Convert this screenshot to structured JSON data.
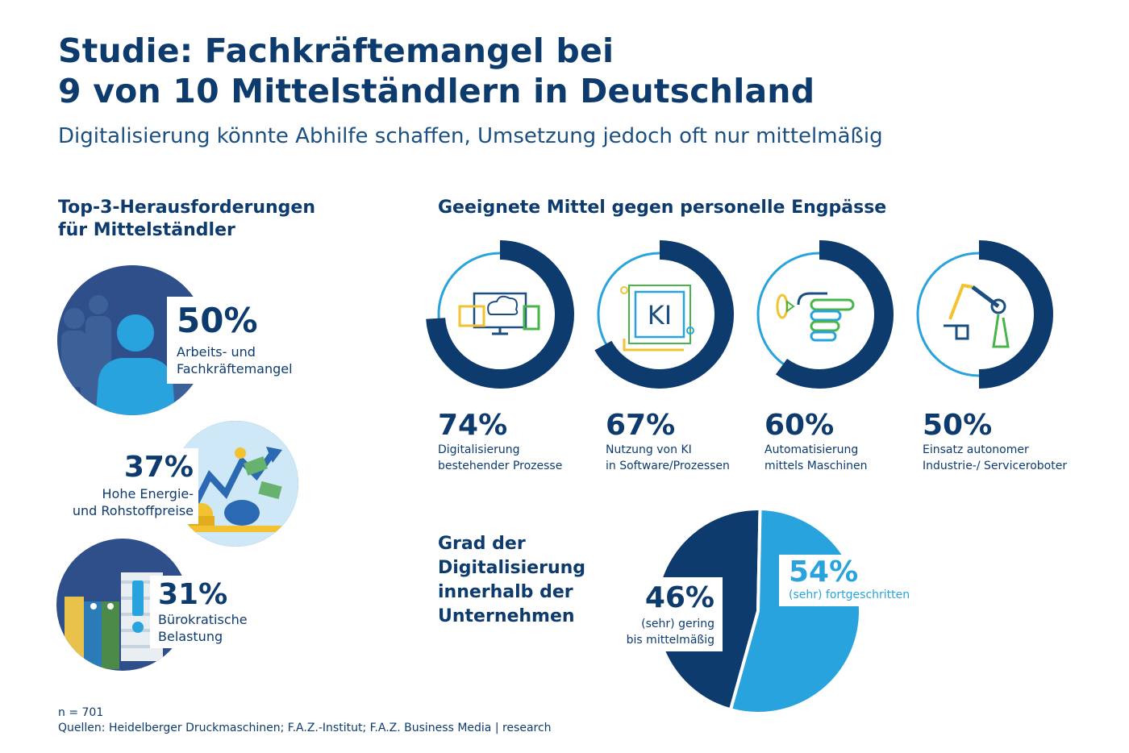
{
  "header": {
    "title_line1": "Studie: Fachkräftemangel bei",
    "title_line2": "9 von 10 Mittelständlern in Deutschland",
    "subtitle": "Digitalisierung könnte Abhilfe schaffen, Umsetzung jedoch oft nur mittelmäßig"
  },
  "challenges": {
    "heading_line1": "Top-3-Herausforderungen",
    "heading_line2": "für Mittelständler",
    "items": [
      {
        "pct": "50%",
        "label_line1": "Arbeits- und",
        "label_line2": "Fachkräftemangel"
      },
      {
        "pct": "37%",
        "label_line1": "Hohe Energie-",
        "label_line2": "und Rohstoffpreise"
      },
      {
        "pct": "31%",
        "label_line1": "Bürokratische",
        "label_line2": "Belastung"
      }
    ]
  },
  "measures": {
    "heading": "Geeignete Mittel gegen personelle Engpässe",
    "items": [
      {
        "pct": "74%",
        "label_line1": "Digitalisierung",
        "label_line2": "bestehender Prozesse",
        "icon": "cloud-devices-icon"
      },
      {
        "pct": "67%",
        "label_line1": "Nutzung von KI",
        "label_line2": "in Software/Prozessen",
        "icon": "ki-chip-icon",
        "icon_text": "KI"
      },
      {
        "pct": "60%",
        "label_line1": "Automatisierung",
        "label_line2": "mittels Maschinen",
        "icon": "robot-hand-icon"
      },
      {
        "pct": "50%",
        "label_line1": "Einsatz autonomer",
        "label_line2": "Industrie-/ Serviceroboter",
        "icon": "robot-arm-icon"
      }
    ]
  },
  "digitalization": {
    "heading_line1": "Grad der",
    "heading_line2": "Digitalisierung",
    "heading_line3": "innerhalb der",
    "heading_line4": "Unternehmen",
    "low_pct": "46%",
    "low_label_line1": "(sehr) gering",
    "low_label_line2": "bis mittelmäßig",
    "high_pct": "54%",
    "high_label": "(sehr) fortgeschritten"
  },
  "footer": {
    "n": "n = 701",
    "sources": "Quellen: Heidelberger Druckmaschinen; F.A.Z.-Institut; F.A.Z. Business Media | research"
  },
  "colors": {
    "navy": "#0d3b6e",
    "dark_blue": "#1b4f82",
    "mid_blue": "#29a3dd",
    "light_blue": "#a9d6f0",
    "yellow": "#f2c230",
    "green": "#47b549"
  },
  "chart_data": [
    {
      "type": "bar",
      "title": "Top-3-Herausforderungen für Mittelständler",
      "categories": [
        "Arbeits- und Fachkräftemangel",
        "Hohe Energie- und Rohstoffpreise",
        "Bürokratische Belastung"
      ],
      "values": [
        50,
        37,
        31
      ],
      "unit": "%"
    },
    {
      "type": "bar",
      "title": "Geeignete Mittel gegen personelle Engpässe",
      "categories": [
        "Digitalisierung bestehender Prozesse",
        "Nutzung von KI in Software/Prozessen",
        "Automatisierung mittels Maschinen",
        "Einsatz autonomer Industrie-/ Serviceroboter"
      ],
      "values": [
        74,
        67,
        60,
        50
      ],
      "unit": "%"
    },
    {
      "type": "pie",
      "title": "Grad der Digitalisierung innerhalb der Unternehmen",
      "categories": [
        "(sehr) gering bis mittelmäßig",
        "(sehr) fortgeschritten"
      ],
      "values": [
        46,
        54
      ],
      "unit": "%"
    }
  ]
}
